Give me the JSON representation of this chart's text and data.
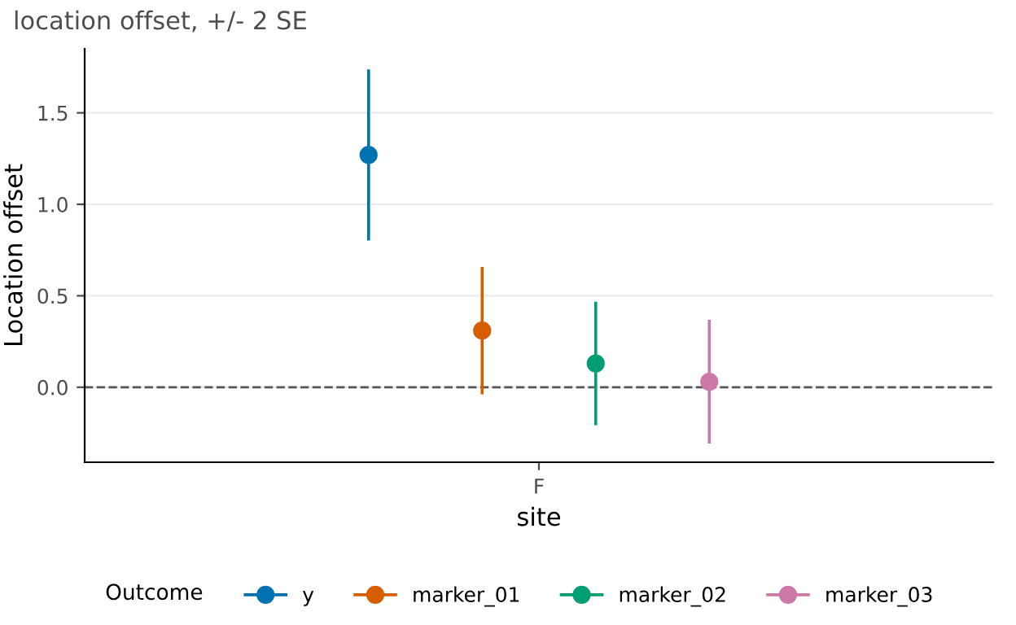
{
  "chart_data": {
    "type": "scatter",
    "title": "location offset, +/- 2 SE",
    "xlabel": "site",
    "ylabel": "Location offset",
    "legend_title": "Outcome",
    "categories": [
      "F"
    ],
    "series": [
      {
        "name": "y",
        "color": "#0072b2",
        "values": [
          1.27
        ],
        "errors": [
          0.46
        ]
      },
      {
        "name": "marker_01",
        "color": "#d55e00",
        "values": [
          0.31
        ],
        "errors": [
          0.34
        ]
      },
      {
        "name": "marker_02",
        "color": "#009e73",
        "values": [
          0.13
        ],
        "errors": [
          0.33
        ]
      },
      {
        "name": "marker_03",
        "color": "#cc79a7",
        "values": [
          0.03
        ],
        "errors": [
          0.33
        ]
      }
    ],
    "ylim": [
      -0.41,
      1.85
    ],
    "yticks": [
      {
        "value": 0,
        "label": "0.0"
      },
      0.5,
      {
        "value": 1,
        "label": "1.0"
      },
      1.5
    ],
    "grid": "y",
    "legend": "bottom",
    "marker": "circle",
    "ref_lines": [
      {
        "axis": "y",
        "value": 0,
        "color": "#555555",
        "line_style": "dashed"
      }
    ]
  }
}
